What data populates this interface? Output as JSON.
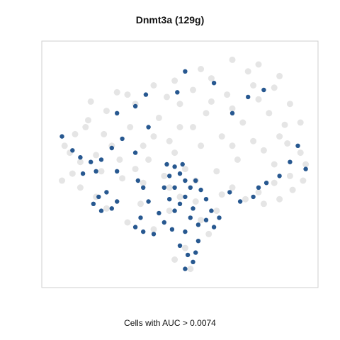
{
  "chart_data": {
    "type": "scatter",
    "title": "Dnmt3a (129g)",
    "xlabel": "Cells with AUC > 0.0074",
    "ylabel": "",
    "axes_visible": false,
    "grid": false,
    "legend": "none",
    "colors": {
      "background_cells": "#dcdcdc",
      "positive_cells": "#1b4f8a"
    },
    "series": [
      {
        "values_role": "all cells",
        "points": [
          [
            0.7,
            0.95
          ],
          [
            0.8,
            0.93
          ],
          [
            0.88,
            0.88
          ],
          [
            0.62,
            0.87
          ],
          [
            0.55,
            0.82
          ],
          [
            0.45,
            0.79
          ],
          [
            0.33,
            0.76
          ],
          [
            0.22,
            0.73
          ],
          [
            0.15,
            0.69
          ],
          [
            0.1,
            0.63
          ],
          [
            0.06,
            0.58
          ],
          [
            0.08,
            0.55
          ],
          [
            0.12,
            0.51
          ],
          [
            0.2,
            0.47
          ],
          [
            0.28,
            0.44
          ],
          [
            0.36,
            0.42
          ],
          [
            0.46,
            0.4
          ],
          [
            0.56,
            0.43
          ],
          [
            0.64,
            0.47
          ],
          [
            0.72,
            0.52
          ],
          [
            0.82,
            0.56
          ],
          [
            0.91,
            0.59
          ],
          [
            0.96,
            0.55
          ],
          [
            0.98,
            0.5
          ],
          [
            0.92,
            0.45
          ],
          [
            0.86,
            0.42
          ],
          [
            0.8,
            0.38
          ],
          [
            0.75,
            0.35
          ],
          [
            0.82,
            0.33
          ],
          [
            0.88,
            0.35
          ],
          [
            0.93,
            0.39
          ],
          [
            0.97,
            0.43
          ],
          [
            0.66,
            0.62
          ],
          [
            0.74,
            0.68
          ],
          [
            0.84,
            0.72
          ],
          [
            0.92,
            0.76
          ],
          [
            0.6,
            0.72
          ],
          [
            0.5,
            0.66
          ],
          [
            0.4,
            0.62
          ],
          [
            0.31,
            0.66
          ],
          [
            0.24,
            0.58
          ],
          [
            0.18,
            0.54
          ],
          [
            0.38,
            0.52
          ],
          [
            0.48,
            0.55
          ],
          [
            0.58,
            0.58
          ],
          [
            0.68,
            0.8
          ],
          [
            0.78,
            0.84
          ],
          [
            0.86,
            0.83
          ],
          [
            0.26,
            0.81
          ],
          [
            0.16,
            0.77
          ],
          [
            0.7,
            0.58
          ],
          [
            0.55,
            0.66
          ],
          [
            0.42,
            0.7
          ],
          [
            0.64,
            0.3
          ],
          [
            0.58,
            0.26
          ],
          [
            0.61,
            0.2
          ],
          [
            0.52,
            0.14
          ],
          [
            0.48,
            0.09
          ],
          [
            0.54,
            0.05
          ],
          [
            0.4,
            0.22
          ],
          [
            0.3,
            0.25
          ],
          [
            0.22,
            0.31
          ],
          [
            0.18,
            0.36
          ],
          [
            0.12,
            0.4
          ],
          [
            0.05,
            0.43
          ],
          [
            0.09,
            0.46
          ],
          [
            0.35,
            0.33
          ],
          [
            0.46,
            0.3
          ],
          [
            0.5,
            0.36
          ],
          [
            0.56,
            0.34
          ],
          [
            0.44,
            0.45
          ],
          [
            0.52,
            0.48
          ],
          [
            0.33,
            0.48
          ],
          [
            0.27,
            0.52
          ],
          [
            0.21,
            0.63
          ],
          [
            0.14,
            0.66
          ],
          [
            0.36,
            0.58
          ],
          [
            0.46,
            0.6
          ],
          [
            0.66,
            0.37
          ],
          [
            0.7,
            0.4
          ],
          [
            0.9,
            0.67
          ],
          [
            0.96,
            0.68
          ],
          [
            0.76,
            0.9
          ],
          [
            0.58,
            0.91
          ],
          [
            0.48,
            0.86
          ],
          [
            0.4,
            0.84
          ],
          [
            0.3,
            0.8
          ],
          [
            0.5,
            0.76
          ],
          [
            0.62,
            0.77
          ],
          [
            0.7,
            0.74
          ],
          [
            0.8,
            0.78
          ],
          [
            0.88,
            0.62
          ],
          [
            0.78,
            0.6
          ],
          [
            0.86,
            0.5
          ]
        ]
      },
      {
        "values_role": "cells with AUC > 0.0074",
        "points": [
          [
            0.05,
            0.62
          ],
          [
            0.09,
            0.56
          ],
          [
            0.12,
            0.53
          ],
          [
            0.16,
            0.51
          ],
          [
            0.2,
            0.52
          ],
          [
            0.24,
            0.57
          ],
          [
            0.28,
            0.61
          ],
          [
            0.33,
            0.55
          ],
          [
            0.34,
            0.43
          ],
          [
            0.26,
            0.47
          ],
          [
            0.18,
            0.47
          ],
          [
            0.13,
            0.46
          ],
          [
            0.19,
            0.36
          ],
          [
            0.17,
            0.33
          ],
          [
            0.2,
            0.3
          ],
          [
            0.24,
            0.31
          ],
          [
            0.26,
            0.34
          ],
          [
            0.22,
            0.38
          ],
          [
            0.36,
            0.4
          ],
          [
            0.38,
            0.34
          ],
          [
            0.42,
            0.29
          ],
          [
            0.44,
            0.25
          ],
          [
            0.4,
            0.2
          ],
          [
            0.36,
            0.21
          ],
          [
            0.47,
            0.22
          ],
          [
            0.48,
            0.3
          ],
          [
            0.5,
            0.33
          ],
          [
            0.52,
            0.36
          ],
          [
            0.54,
            0.4
          ],
          [
            0.56,
            0.43
          ],
          [
            0.58,
            0.39
          ],
          [
            0.6,
            0.35
          ],
          [
            0.62,
            0.3
          ],
          [
            0.65,
            0.27
          ],
          [
            0.57,
            0.24
          ],
          [
            0.52,
            0.21
          ],
          [
            0.54,
            0.27
          ],
          [
            0.46,
            0.35
          ],
          [
            0.44,
            0.4
          ],
          [
            0.46,
            0.45
          ],
          [
            0.5,
            0.46
          ],
          [
            0.52,
            0.43
          ],
          [
            0.48,
            0.4
          ],
          [
            0.55,
            0.31
          ],
          [
            0.6,
            0.26
          ],
          [
            0.63,
            0.23
          ],
          [
            0.45,
            0.5
          ],
          [
            0.48,
            0.49
          ],
          [
            0.51,
            0.5
          ],
          [
            0.35,
            0.27
          ],
          [
            0.33,
            0.23
          ],
          [
            0.5,
            0.15
          ],
          [
            0.53,
            0.11
          ],
          [
            0.55,
            0.08
          ],
          [
            0.52,
            0.05
          ],
          [
            0.56,
            0.12
          ],
          [
            0.57,
            0.17
          ],
          [
            0.69,
            0.38
          ],
          [
            0.73,
            0.34
          ],
          [
            0.78,
            0.36
          ],
          [
            0.8,
            0.4
          ],
          [
            0.83,
            0.42
          ],
          [
            0.88,
            0.45
          ],
          [
            0.92,
            0.51
          ],
          [
            0.95,
            0.58
          ],
          [
            0.98,
            0.48
          ],
          [
            0.7,
            0.72
          ],
          [
            0.76,
            0.79
          ],
          [
            0.82,
            0.82
          ],
          [
            0.63,
            0.85
          ],
          [
            0.52,
            0.9
          ],
          [
            0.37,
            0.8
          ],
          [
            0.33,
            0.75
          ],
          [
            0.26,
            0.72
          ],
          [
            0.38,
            0.66
          ],
          [
            0.49,
            0.81
          ]
        ]
      }
    ],
    "xlim": [
      0,
      1
    ],
    "ylim": [
      0,
      1
    ]
  }
}
